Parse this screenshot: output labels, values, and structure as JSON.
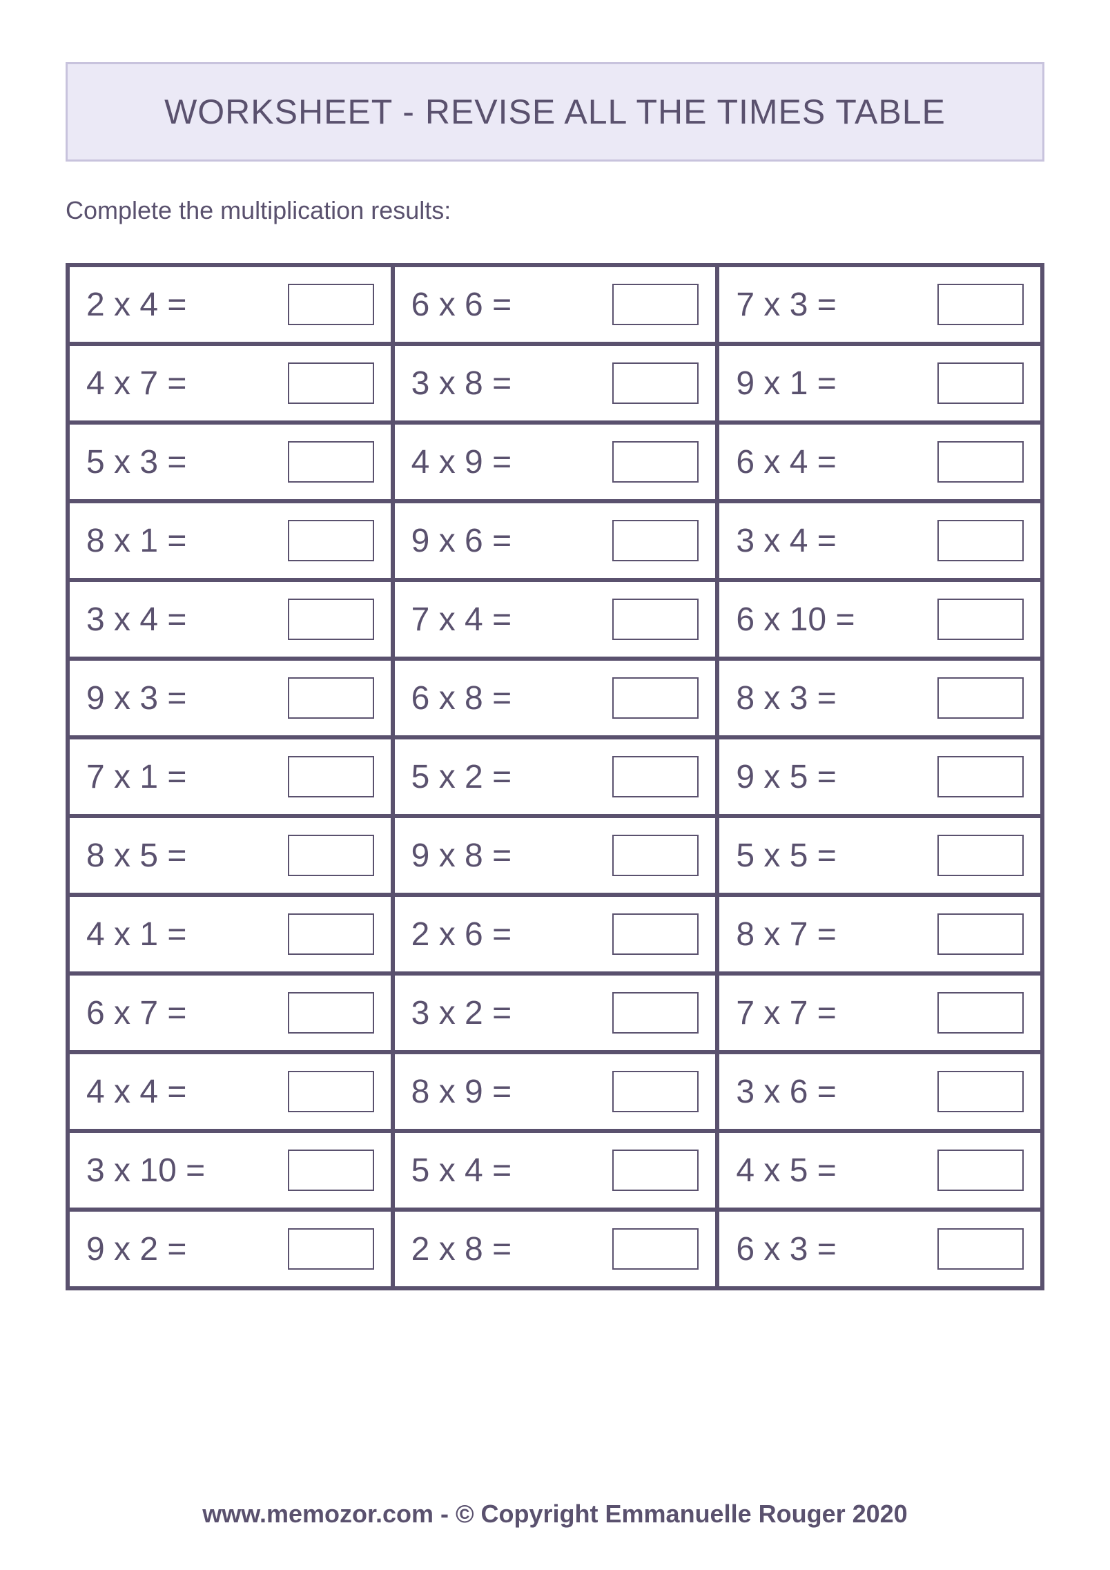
{
  "title": "WORKSHEET - REVISE ALL THE TIMES TABLE",
  "instructions": "Complete the multiplication results:",
  "footer": "www.memozor.com - © Copyright Emmanuelle Rouger 2020",
  "style": {
    "title_bg": "#ebe9f6",
    "title_border": "#c8c3dd",
    "text_color": "#5a516e",
    "grid_border": "#5a516e",
    "page_bg": "#ffffff",
    "title_fontsize": 50,
    "instruction_fontsize": 36,
    "equation_fontsize": 48,
    "footer_fontsize": 36,
    "columns": 3,
    "rows_count": 13,
    "answer_box_width": 125,
    "answer_box_height": 60
  },
  "rows": [
    {
      "c0": "2 x 4 =",
      "c1": "6 x 6 =",
      "c2": "7 x 3 ="
    },
    {
      "c0": "4 x 7 =",
      "c1": "3 x 8 =",
      "c2": "9 x 1 ="
    },
    {
      "c0": "5 x 3 =",
      "c1": "4 x 9 =",
      "c2": "6 x 4 ="
    },
    {
      "c0": "8 x 1 =",
      "c1": "9 x 6 =",
      "c2": "3 x 4 ="
    },
    {
      "c0": "3 x 4 =",
      "c1": "7 x 4 =",
      "c2": "6 x 10 ="
    },
    {
      "c0": "9 x 3 =",
      "c1": "6 x 8 =",
      "c2": "8 x 3 ="
    },
    {
      "c0": "7 x 1 =",
      "c1": "5 x 2 =",
      "c2": "9 x 5 ="
    },
    {
      "c0": "8 x 5 =",
      "c1": "9 x 8 =",
      "c2": "5 x 5 ="
    },
    {
      "c0": "4 x 1 =",
      "c1": "2 x 6 =",
      "c2": "8 x 7 ="
    },
    {
      "c0": "6 x 7 =",
      "c1": "3 x 2 =",
      "c2": "7 x 7 ="
    },
    {
      "c0": "4 x 4 =",
      "c1": "8 x 9 =",
      "c2": "3 x 6 ="
    },
    {
      "c0": "3 x 10 =",
      "c1": "5 x 4 =",
      "c2": "4 x 5 ="
    },
    {
      "c0": "9 x 2 =",
      "c1": "2 x 8 =",
      "c2": "6 x 3 ="
    }
  ]
}
